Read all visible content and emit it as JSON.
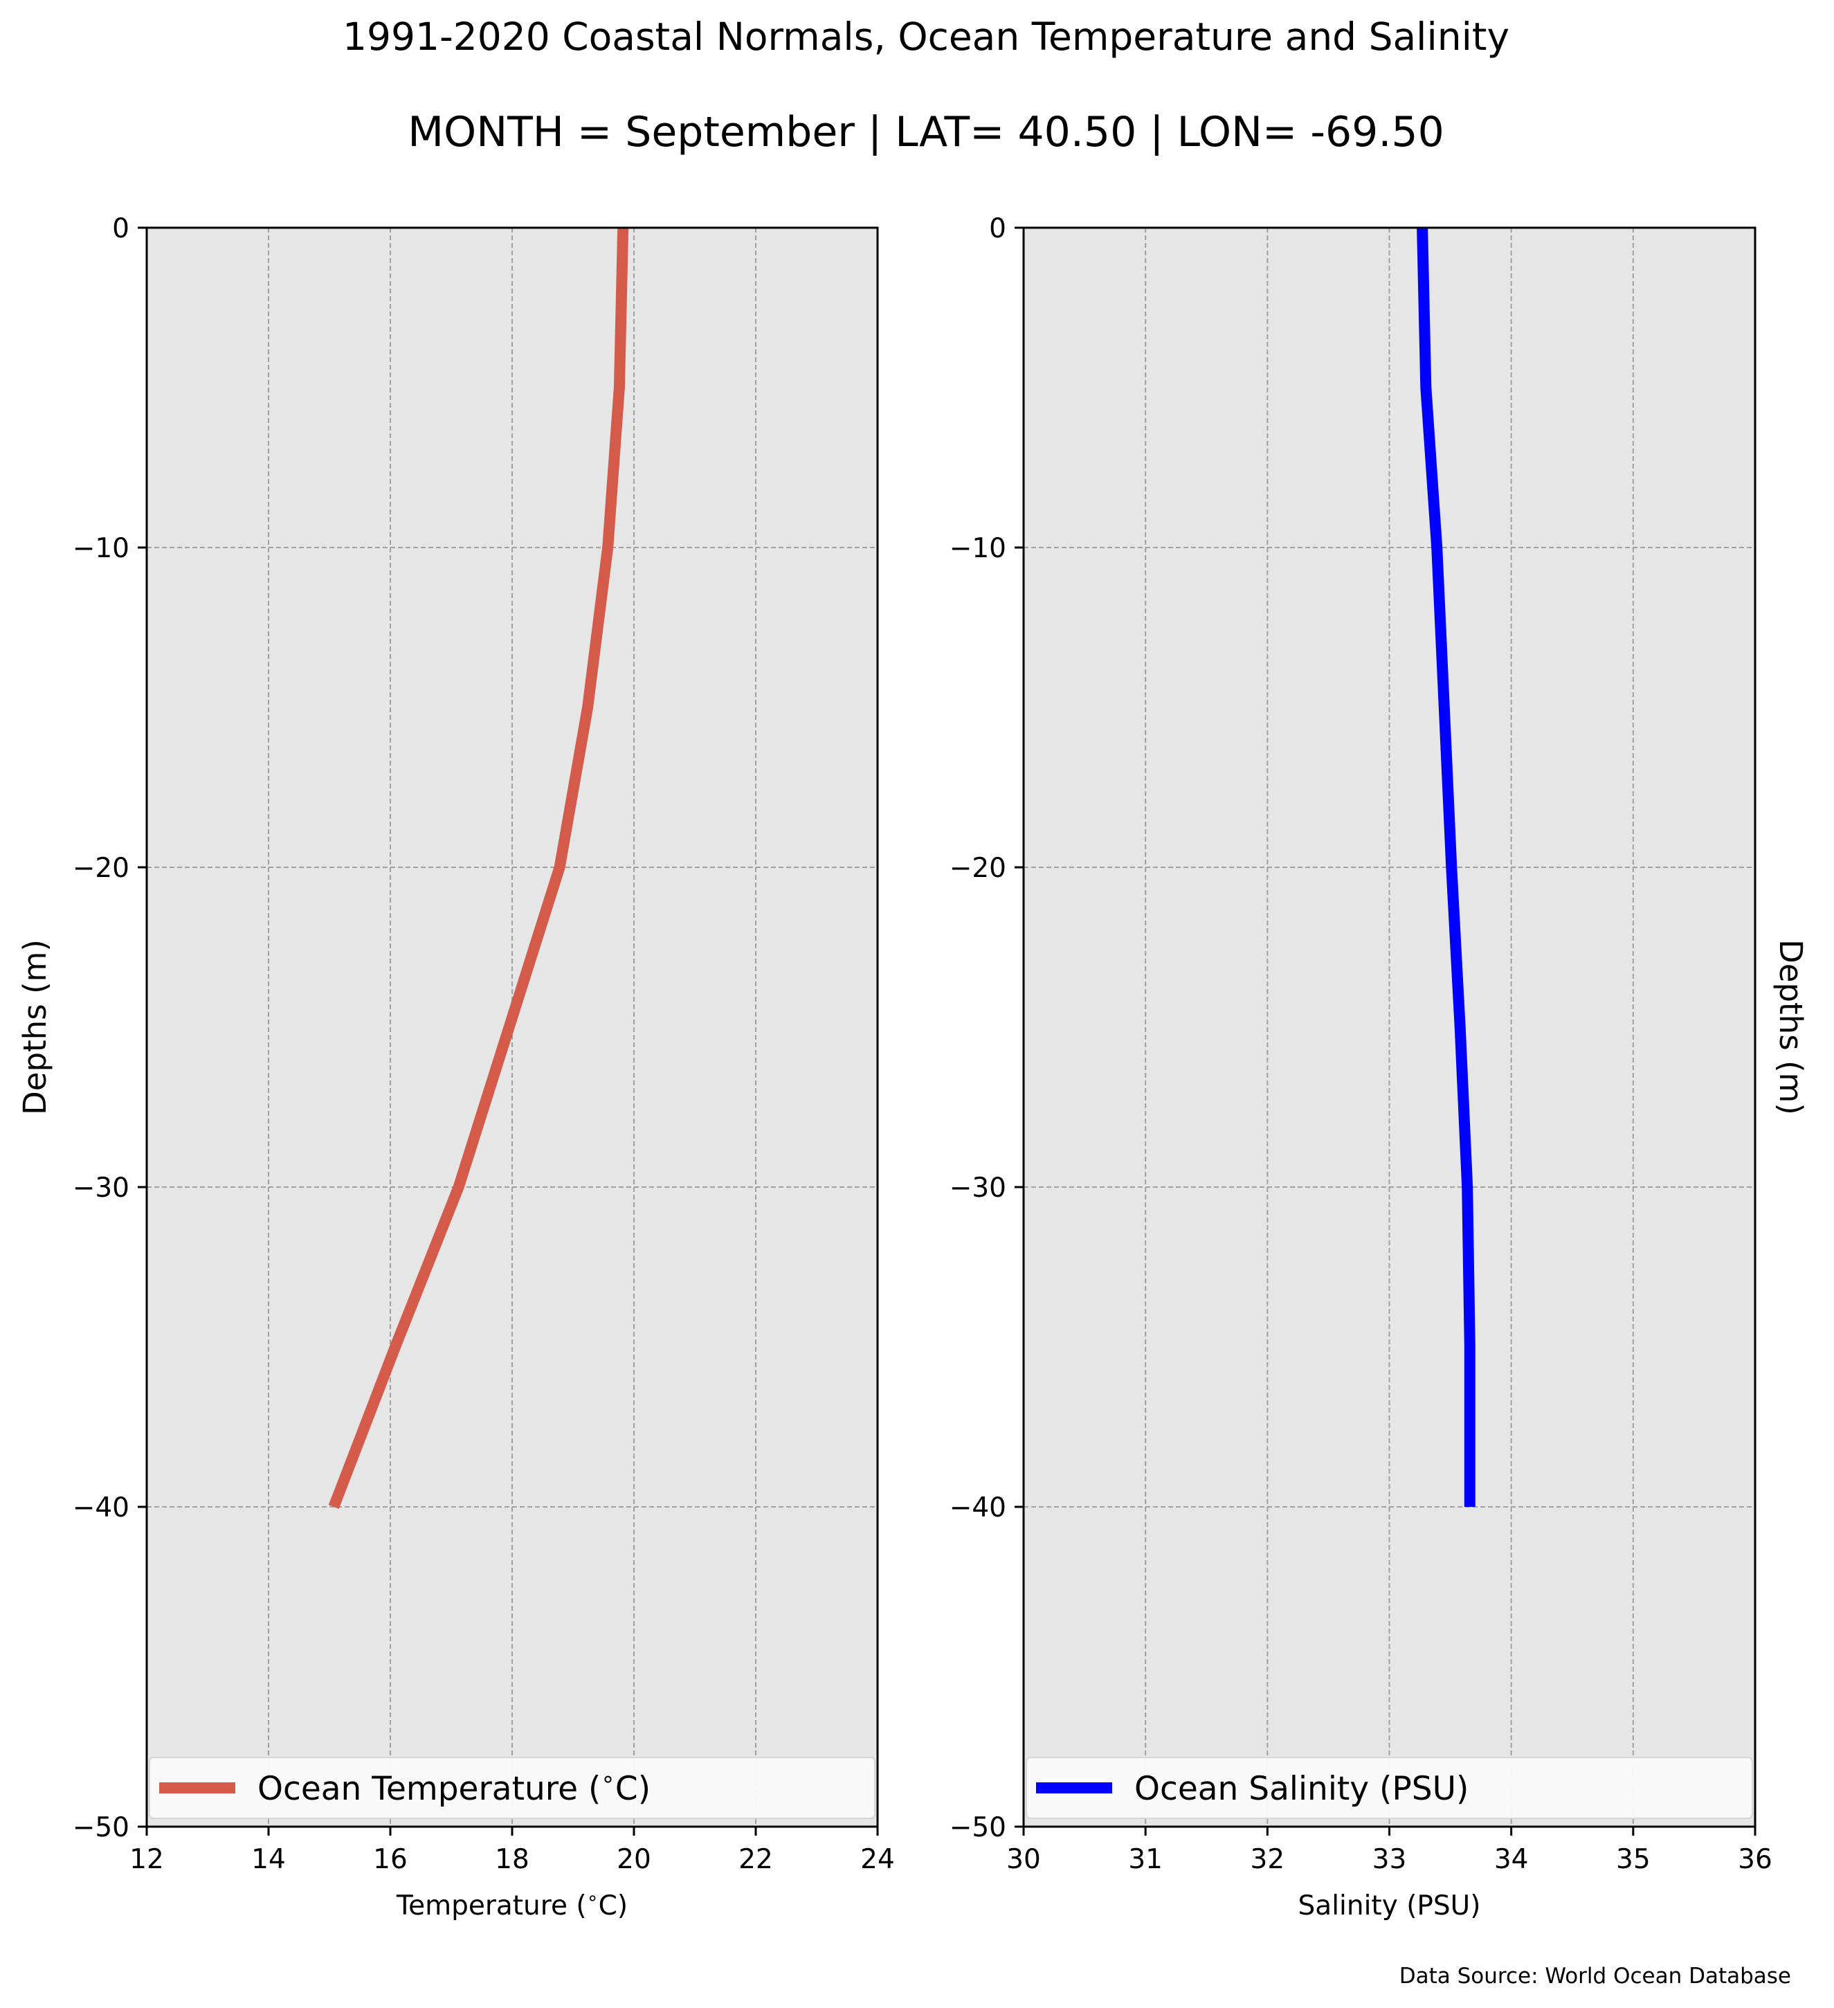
{
  "title": "1991-2020 Coastal Normals, Ocean Temperature and Salinity",
  "subtitle": "MONTH = September | LAT= 40.50 | LON= -69.50",
  "source_note": "Data Source: World Ocean Database",
  "colors": {
    "background": "#ffffff",
    "axes_face": "#e6e6e6",
    "grid": "#a0a0a0",
    "temperature": "#d45a4a",
    "salinity": "#0000ff"
  },
  "chart_data": [
    {
      "type": "line",
      "xlabel": "Temperature ($^\\circ$C)",
      "ylabel": "Depths (m)",
      "xlim": [
        12,
        24
      ],
      "ylim": [
        -50,
        0
      ],
      "xticks": [
        12,
        14,
        16,
        18,
        20,
        22,
        24
      ],
      "yticks": [
        0,
        -10,
        -20,
        -30,
        -40,
        -50
      ],
      "grid": true,
      "legend_position": "lower-center",
      "series": [
        {
          "name": "Ocean Temperature ($^\\circ$C)",
          "x": [
            19.82,
            19.76,
            19.57,
            19.24,
            18.78,
            17.95,
            17.12,
            16.08,
            15.07
          ],
          "y": [
            0,
            -5,
            -10,
            -15,
            -20,
            -25,
            -30,
            -35,
            -40
          ]
        }
      ]
    },
    {
      "type": "line",
      "xlabel": "Salinity (PSU)",
      "ylabel": "Depths (m)",
      "xlim": [
        30,
        36
      ],
      "ylim": [
        -50,
        0
      ],
      "xticks": [
        30,
        31,
        32,
        33,
        34,
        35,
        36
      ],
      "yticks": [
        0,
        -10,
        -20,
        -30,
        -40,
        -50
      ],
      "grid": true,
      "legend_position": "lower-center",
      "series": [
        {
          "name": "Ocean Salinity (PSU)",
          "x": [
            33.27,
            33.3,
            33.39,
            33.45,
            33.51,
            33.58,
            33.64,
            33.66,
            33.66
          ],
          "y": [
            0,
            -5,
            -10,
            -15,
            -20,
            -25,
            -30,
            -35,
            -40
          ]
        }
      ]
    }
  ]
}
